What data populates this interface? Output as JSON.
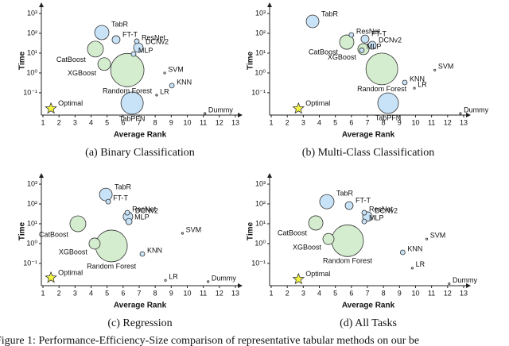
{
  "caption": "Figure 1: Performance-Efficiency-Size comparison of representative tabular methods on our be",
  "chart_data": [
    {
      "type": "scatter",
      "title": "(a) Binary Classification",
      "xlabel": "Average Rank",
      "ylabel": "Time",
      "log_y": true,
      "xlim": [
        0.9,
        13.2
      ],
      "ylim": [
        0.0075,
        2300
      ],
      "xticks": [
        1,
        2,
        3,
        4,
        5,
        6,
        7,
        8,
        9,
        10,
        11,
        12,
        13
      ],
      "yticks": [
        {
          "value": 0.1,
          "label": "10⁻¹"
        },
        {
          "value": 1,
          "label": "10⁰"
        },
        {
          "value": 10,
          "label": "10¹"
        },
        {
          "value": 100,
          "label": "10²"
        },
        {
          "value": 1000,
          "label": "10³"
        }
      ],
      "series": [
        {
          "labels": [
            "TabR",
            "FT-T",
            "ResNet",
            "DCNv2",
            "MLP",
            "CatBoost",
            "XGBoost",
            "Random Forest",
            "SVM",
            "KNN",
            "LR",
            "TabPFN",
            "Dummy"
          ],
          "x": [
            4.67,
            5.56,
            6.85,
            6.95,
            6.65,
            4.27,
            4.82,
            6.26,
            8.59,
            9.04,
            8.09,
            6.56,
            11.1
          ],
          "values": [
            110,
            48,
            40,
            19,
            9,
            16,
            2.8,
            1.4,
            1,
            0.23,
            0.076,
            0.03,
            0.009
          ],
          "sizes": [
            9,
            5,
            3,
            6,
            3,
            10,
            8,
            21,
            1.2,
            3,
            1.2,
            14,
            1.2
          ],
          "colors": [
            "#c8e3f8",
            "#c8e3f8",
            "#c8e3f8",
            "#c8e3f8",
            "#c8e3f8",
            "#d5edcf",
            "#d5edcf",
            "#d5edcf",
            "#c8e3f8",
            "#c8e3f8",
            "#c8e3f8",
            "#c8e3f8",
            "#c8e3f8"
          ]
        }
      ],
      "optimal": {
        "label": "Optimal",
        "x": 1.5,
        "value": 0.016,
        "color": "#f4f442"
      }
    },
    {
      "type": "scatter",
      "title": "(b) Multi-Class Classification",
      "xlabel": "Average Rank",
      "ylabel": "Time",
      "log_y": true,
      "xlim": [
        0.9,
        13.2
      ],
      "ylim": [
        0.0075,
        2300
      ],
      "xticks": [
        1,
        2,
        3,
        4,
        5,
        6,
        7,
        8,
        9,
        10,
        11,
        12,
        13
      ],
      "yticks": [
        {
          "value": 0.1,
          "label": "10⁻¹"
        },
        {
          "value": 1,
          "label": "10⁰"
        },
        {
          "value": 10,
          "label": "10¹"
        },
        {
          "value": 100,
          "label": "10²"
        },
        {
          "value": 1000,
          "label": "10³"
        }
      ],
      "series": [
        {
          "labels": [
            "TabR",
            "FT-T",
            "ResNet",
            "DCNv2",
            "MLP",
            "CatBoost",
            "XGBoost",
            "Random Forest",
            "SVM",
            "KNN",
            "LR",
            "TabPFN",
            "Dummy"
          ],
          "x": [
            3.58,
            6.85,
            6.0,
            7.3,
            6.65,
            5.71,
            6.75,
            7.9,
            11.2,
            9.33,
            9.93,
            8.29,
            12.8
          ],
          "values": [
            400,
            52,
            83,
            25,
            14,
            36,
            16,
            1.6,
            1.4,
            0.33,
            0.17,
            0.03,
            0.009
          ],
          "sizes": [
            8,
            5,
            3,
            5,
            3,
            9,
            7,
            20,
            1.2,
            3,
            1.2,
            13,
            1.2
          ],
          "colors": [
            "#c8e3f8",
            "#c8e3f8",
            "#c8e3f8",
            "#c8e3f8",
            "#c8e3f8",
            "#d5edcf",
            "#d5edcf",
            "#d5edcf",
            "#c8e3f8",
            "#c8e3f8",
            "#c8e3f8",
            "#c8e3f8",
            "#c8e3f8"
          ]
        }
      ],
      "optimal": {
        "label": "Optimal",
        "x": 2.7,
        "value": 0.016,
        "color": "#f4f442"
      }
    },
    {
      "type": "scatter",
      "title": "(c) Regression",
      "xlabel": "Average Rank",
      "ylabel": "Time",
      "log_y": true,
      "xlim": [
        0.9,
        13.2
      ],
      "ylim": [
        0.0075,
        2300
      ],
      "xticks": [
        1,
        2,
        3,
        4,
        5,
        6,
        7,
        8,
        9,
        10,
        11,
        12,
        13
      ],
      "yticks": [
        {
          "value": 0.1,
          "label": "10⁻¹"
        },
        {
          "value": 1,
          "label": "10⁰"
        },
        {
          "value": 10,
          "label": "10¹"
        },
        {
          "value": 100,
          "label": "10²"
        },
        {
          "value": 1000,
          "label": "10³"
        }
      ],
      "series": [
        {
          "labels": [
            "TabR",
            "FT-T",
            "ResNet",
            "DCNv2",
            "MLP",
            "CatBoost",
            "XGBoost",
            "Random Forest",
            "SVM",
            "KNN",
            "LR",
            "Dummy"
          ],
          "x": [
            4.92,
            5.07,
            6.26,
            6.3,
            6.36,
            3.18,
            4.22,
            5.27,
            9.7,
            7.2,
            8.64,
            11.3
          ],
          "values": [
            300,
            130,
            36,
            23,
            13,
            10,
            1,
            0.76,
            3.3,
            0.3,
            0.014,
            0.012
          ],
          "sizes": [
            8,
            3,
            3,
            6,
            4,
            10,
            7,
            20,
            1.2,
            3,
            1.2,
            1.2
          ],
          "colors": [
            "#c8e3f8",
            "#c8e3f8",
            "#c8e3f8",
            "#c8e3f8",
            "#c8e3f8",
            "#d5edcf",
            "#d5edcf",
            "#d5edcf",
            "#c8e3f8",
            "#c8e3f8",
            "#c8e3f8",
            "#c8e3f8"
          ]
        }
      ],
      "optimal": {
        "label": "Optimal",
        "x": 1.5,
        "value": 0.019,
        "color": "#f4f442"
      }
    },
    {
      "type": "scatter",
      "title": "(d) All Tasks",
      "xlabel": "Average Rank",
      "ylabel": "Time",
      "log_y": true,
      "xlim": [
        0.9,
        13.2
      ],
      "ylim": [
        0.0075,
        2300
      ],
      "xticks": [
        1,
        2,
        3,
        4,
        5,
        6,
        7,
        8,
        9,
        10,
        11,
        12,
        13
      ],
      "yticks": [
        {
          "value": 0.1,
          "label": "10⁻¹"
        },
        {
          "value": 1,
          "label": "10⁰"
        },
        {
          "value": 10,
          "label": "10¹"
        },
        {
          "value": 100,
          "label": "10²"
        },
        {
          "value": 1000,
          "label": "10³"
        }
      ],
      "series": [
        {
          "labels": [
            "TabR",
            "FT-T",
            "ResNet",
            "DCNv2",
            "MLP",
            "CatBoost",
            "XGBoost",
            "Random Forest",
            "SVM",
            "KNN",
            "LR",
            "Dummy"
          ],
          "x": [
            4.47,
            5.86,
            6.8,
            7.0,
            6.8,
            3.78,
            4.57,
            5.76,
            10.7,
            9.2,
            9.8,
            12.1
          ],
          "values": [
            130,
            83,
            36,
            23,
            13,
            11,
            1.7,
            1.4,
            1.7,
            0.36,
            0.058,
            0.0095
          ],
          "sizes": [
            9,
            5,
            3,
            6,
            3,
            9,
            7,
            20,
            1.2,
            3,
            1.2,
            1.2
          ],
          "colors": [
            "#c8e3f8",
            "#c8e3f8",
            "#c8e3f8",
            "#c8e3f8",
            "#c8e3f8",
            "#d5edcf",
            "#d5edcf",
            "#d5edcf",
            "#c8e3f8",
            "#c8e3f8",
            "#c8e3f8",
            "#c8e3f8"
          ]
        }
      ],
      "optimal": {
        "label": "Optimal",
        "x": 2.7,
        "value": 0.016,
        "color": "#f4f442"
      }
    }
  ]
}
